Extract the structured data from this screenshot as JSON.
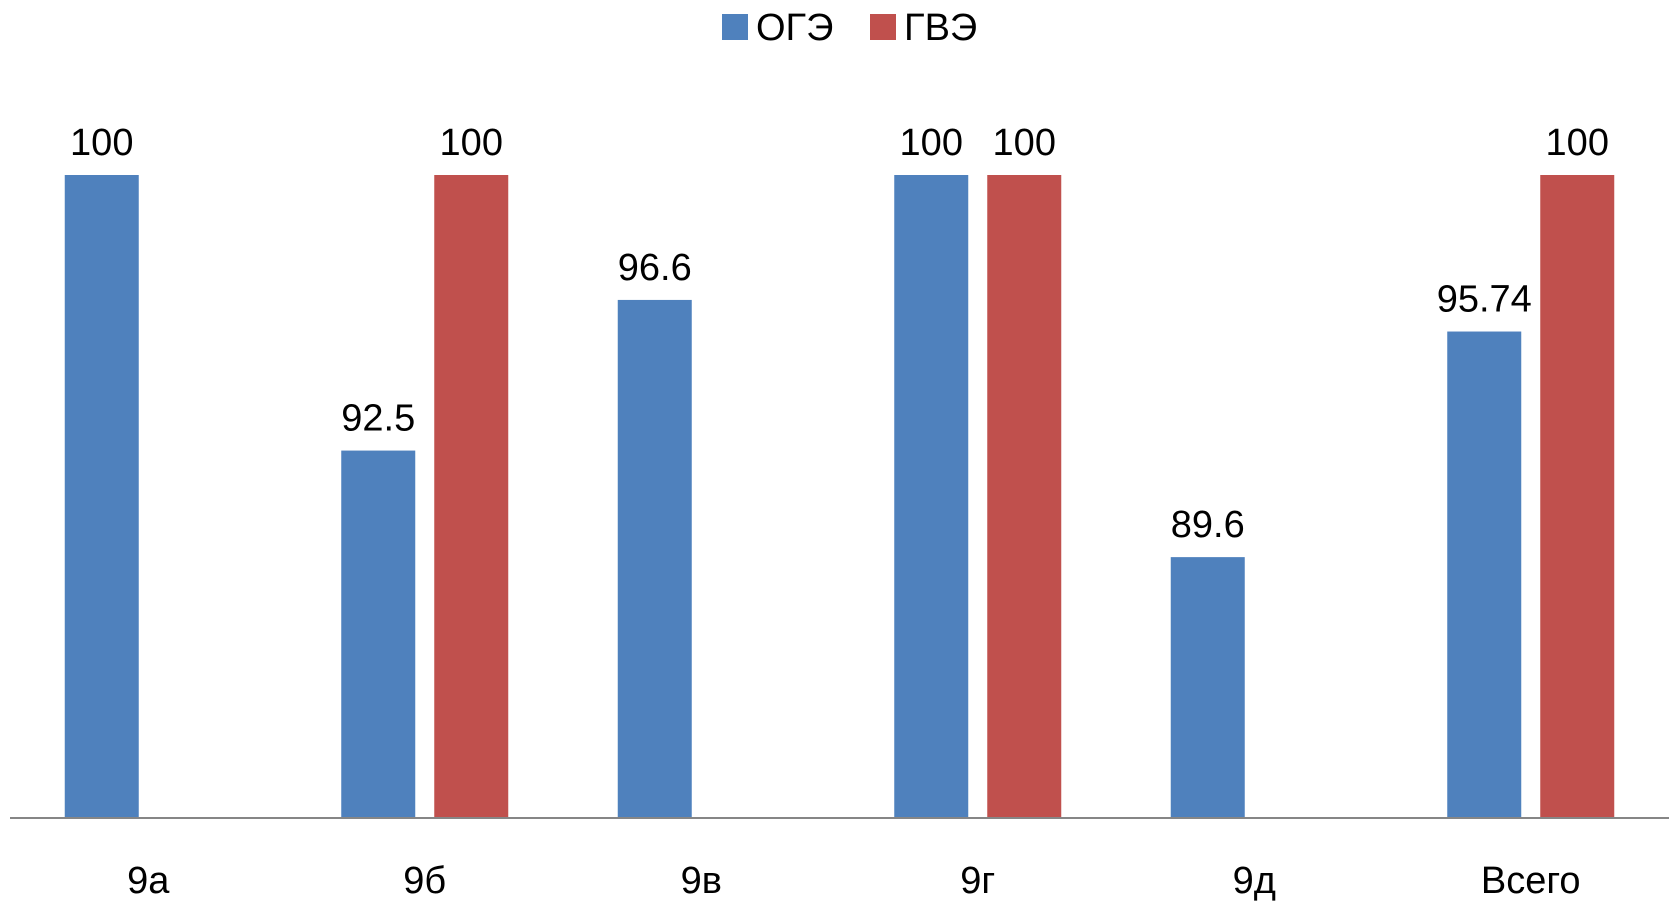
{
  "chart_data": {
    "type": "bar",
    "categories": [
      "9а",
      "9б",
      "9в",
      "9г",
      "9д",
      "Всего"
    ],
    "series": [
      {
        "name": "ОГЭ",
        "color": "#4F81BD",
        "values": [
          100,
          92.5,
          96.6,
          100,
          89.6,
          95.74
        ]
      },
      {
        "name": "ГВЭ",
        "color": "#C0504D",
        "values": [
          null,
          100,
          null,
          100,
          null,
          100
        ]
      }
    ],
    "data_labels": [
      [
        "100",
        "92.5",
        "96.6",
        "100",
        "89.6",
        "95.74"
      ],
      [
        "",
        "100",
        "",
        "100",
        "",
        "100"
      ]
    ],
    "ylim": [
      82.5,
      100
    ],
    "legend_position": "top-center",
    "grid": false
  }
}
